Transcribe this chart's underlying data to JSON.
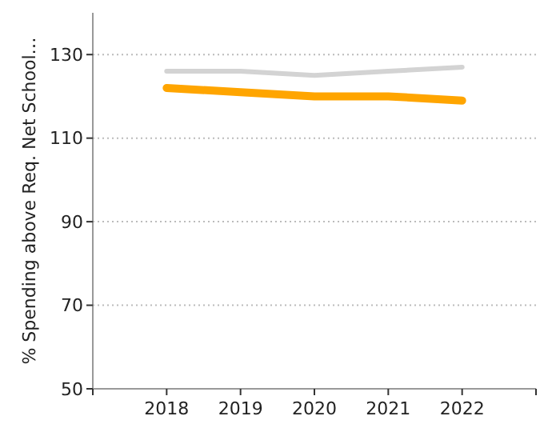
{
  "chart_data": {
    "type": "line",
    "ylabel": "% Spending above Req. Net School…",
    "x": [
      2018,
      2019,
      2020,
      2021,
      2022
    ],
    "xlim": [
      2017,
      2023
    ],
    "xticks": [
      {
        "value": 2017,
        "label": null
      },
      2018,
      2019,
      2020,
      2021,
      2022,
      {
        "value": 2023,
        "label": null
      }
    ],
    "ylim": [
      50,
      140
    ],
    "yticks": [
      50,
      70,
      90,
      110,
      130
    ],
    "grid": "y",
    "marker": "none",
    "line_style": "solid",
    "series": [
      {
        "color": "#d3d3d3",
        "values": [
          126,
          126,
          125,
          126,
          127
        ]
      },
      {
        "color": "#ffa500",
        "values": [
          122,
          121,
          120,
          120,
          119
        ]
      }
    ]
  }
}
